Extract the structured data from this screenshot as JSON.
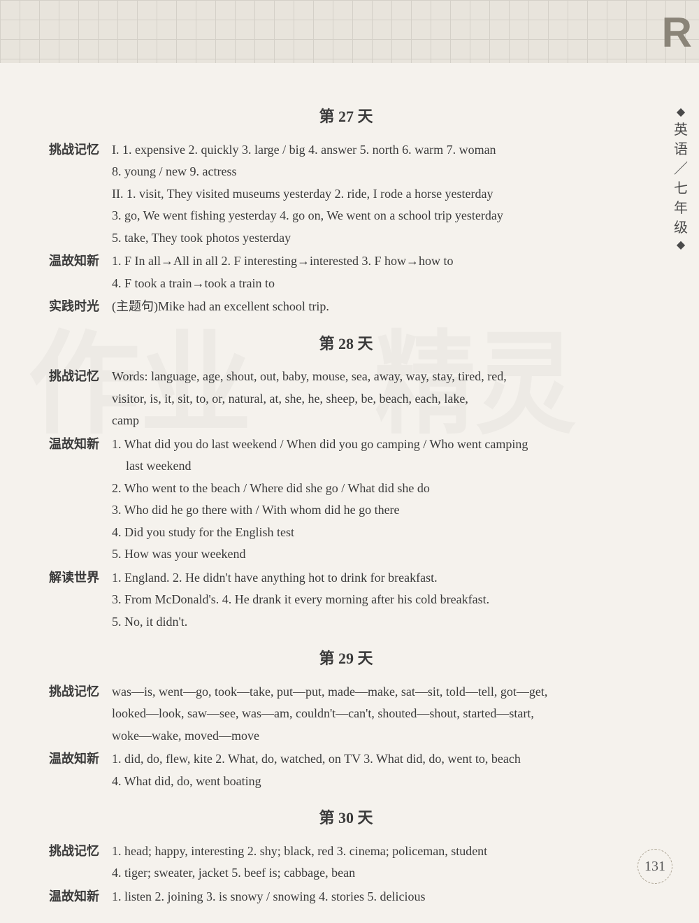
{
  "corner_letter": "R",
  "sidebar": {
    "diamond": "◆",
    "chars": [
      "英",
      "语",
      "／",
      "七",
      "年",
      "级"
    ]
  },
  "page_number": "131",
  "days": [
    {
      "title": "第 27 天",
      "sections": [
        {
          "label": "挑战记忆",
          "lines": [
            "I. 1. expensive  2. quickly  3. large / big  4. answer  5. north  6. warm  7. woman",
            "8. young / new  9. actress",
            "II. 1. visit, They visited museums yesterday  2. ride, I rode a horse yesterday",
            "3. go, We went fishing yesterday  4. go on, We went on a school trip yesterday",
            "5. take, They took photos yesterday"
          ]
        },
        {
          "label": "温故知新",
          "lines": [
            "1. F  In all→All in all  2. F  interesting→interested  3. F  how→how to",
            "4. F  took a train→took a train to"
          ]
        },
        {
          "label": "实践时光",
          "lines": [
            "(主题句)Mike had an excellent school trip."
          ]
        }
      ]
    },
    {
      "title": "第 28 天",
      "sections": [
        {
          "label": "挑战记忆",
          "lines": [
            "Words: language, age, shout, out, baby, mouse, sea, away, way, stay, tired, red,",
            "visitor, is, it, sit, to, or, natural, at, she, he, sheep, be, beach, each, lake,",
            "camp"
          ]
        },
        {
          "label": "温故知新",
          "lines": [
            "1. What did you do last weekend / When did you go camping / Who went camping",
            "   last weekend",
            "2. Who went to the beach / Where did she go / What did she do",
            "3. Who did he go there with / With whom did he go there",
            "4. Did you study for the English test",
            "5. How was your weekend"
          ],
          "indent_lines": [
            1
          ]
        },
        {
          "label": "解读世界",
          "lines": [
            "1. England.  2. He didn't have anything hot to drink for breakfast.",
            "3. From McDonald's.  4. He drank it every morning after his cold breakfast.",
            "5. No, it didn't."
          ]
        }
      ]
    },
    {
      "title": "第 29 天",
      "sections": [
        {
          "label": "挑战记忆",
          "lines": [
            "was—is, went—go, took—take, put—put, made—make, sat—sit, told—tell, got—get,",
            "looked—look, saw—see, was—am, couldn't—can't, shouted—shout, started—start,",
            "woke—wake, moved—move"
          ]
        },
        {
          "label": "温故知新",
          "lines": [
            "1. did, do, flew, kite  2. What, do, watched, on TV  3. What did, do, went to, beach",
            "4. What did, do, went boating"
          ]
        }
      ]
    },
    {
      "title": "第 30 天",
      "sections": [
        {
          "label": "挑战记忆",
          "lines": [
            "1. head; happy, interesting  2. shy; black, red  3. cinema; policeman, student",
            "4. tiger; sweater, jacket  5. beef is; cabbage, bean"
          ]
        },
        {
          "label": "温故知新",
          "lines": [
            "1. listen  2. joining  3. is snowy / snowing  4. stories  5. delicious"
          ]
        }
      ]
    }
  ]
}
